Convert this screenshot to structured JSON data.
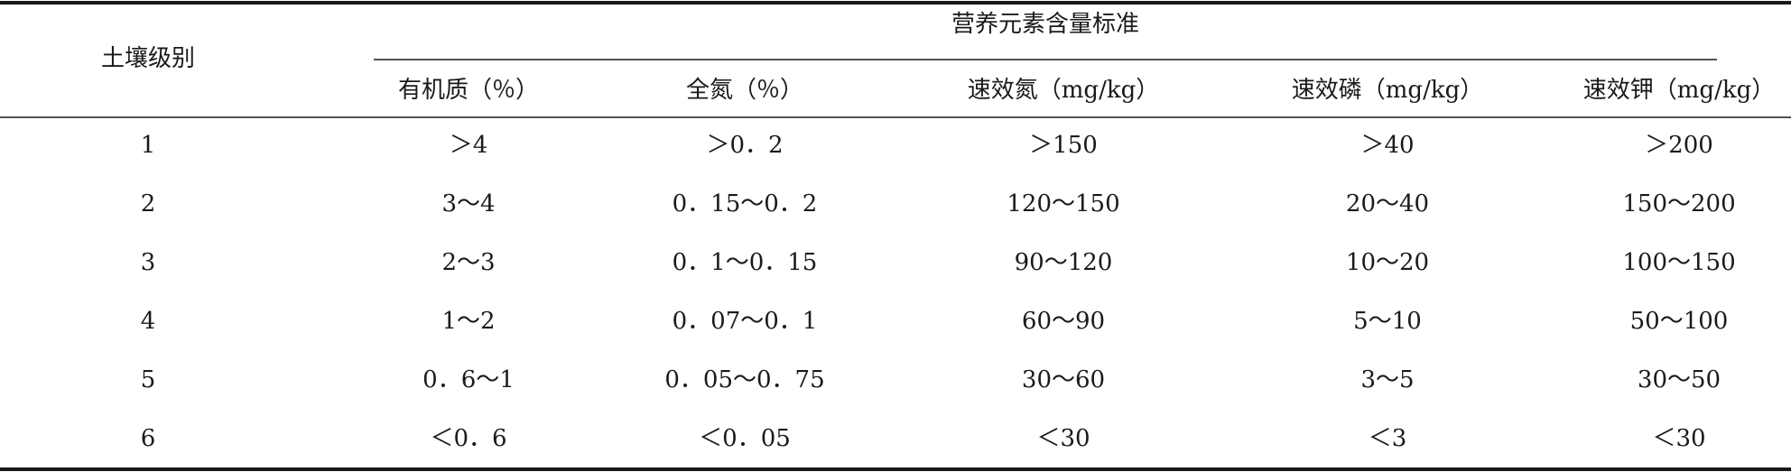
{
  "table": {
    "row_header": "土壤级别",
    "group_header": "营养元素含量标准",
    "columns": [
      "有机质（％）",
      "全氮（％）",
      "速效氮（mg/kg）",
      "速效磷（mg/kg）",
      "速效钾（mg/kg）"
    ],
    "rows": [
      [
        "1",
        "＞4",
        "＞0．2",
        "＞150",
        "＞40",
        "＞200"
      ],
      [
        "2",
        "3～4",
        "0．15～0．2",
        "120～150",
        "20～40",
        "150～200"
      ],
      [
        "3",
        "2～3",
        "0．1～0．15",
        "90～120",
        "10～20",
        "100～150"
      ],
      [
        "4",
        "1～2",
        "0．07～0．1",
        "60～90",
        "5～10",
        "50～100"
      ],
      [
        "5",
        "0．6～1",
        "0．05～0．75",
        "30～60",
        "3～5",
        "30～50"
      ],
      [
        "6",
        "＜0．6",
        "＜0．05",
        "＜30",
        "＜3",
        "＜30"
      ]
    ]
  }
}
